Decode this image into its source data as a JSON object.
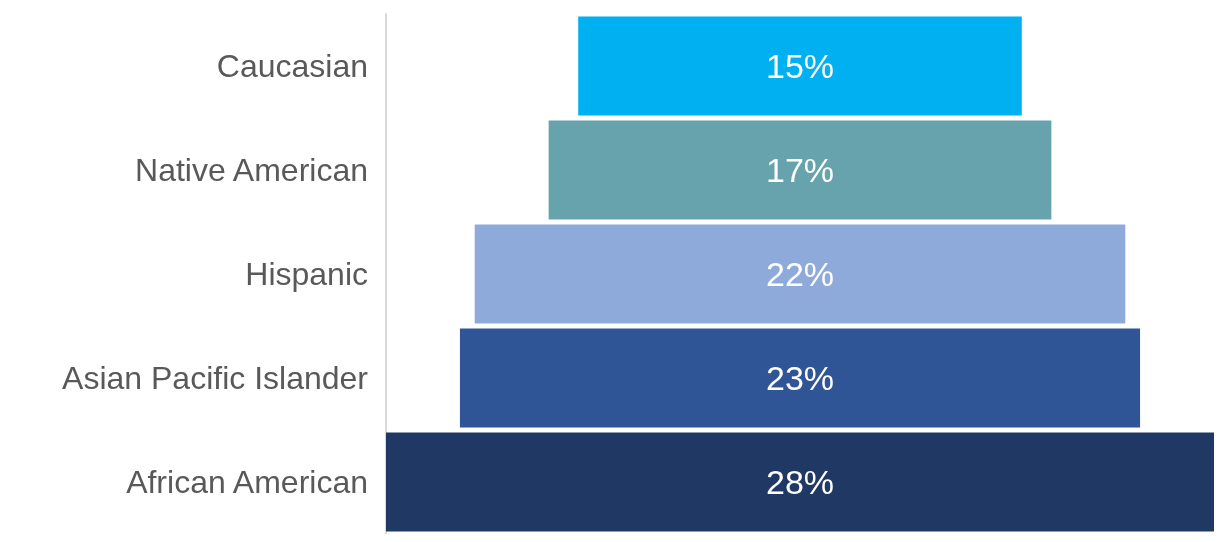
{
  "chart_data": {
    "type": "other",
    "categories": [
      "Caucasian",
      "Native American",
      "Hispanic",
      "Asian Pacific Islander",
      "African American"
    ],
    "values": [
      15,
      17,
      22,
      23,
      28
    ],
    "colors": [
      "#00b0f0",
      "#67a3ac",
      "#8eaadb",
      "#2f5597",
      "#203864"
    ],
    "data_labels": true,
    "value_labels": [
      "15%",
      "17%",
      "22%",
      "23%",
      "28%"
    ]
  }
}
